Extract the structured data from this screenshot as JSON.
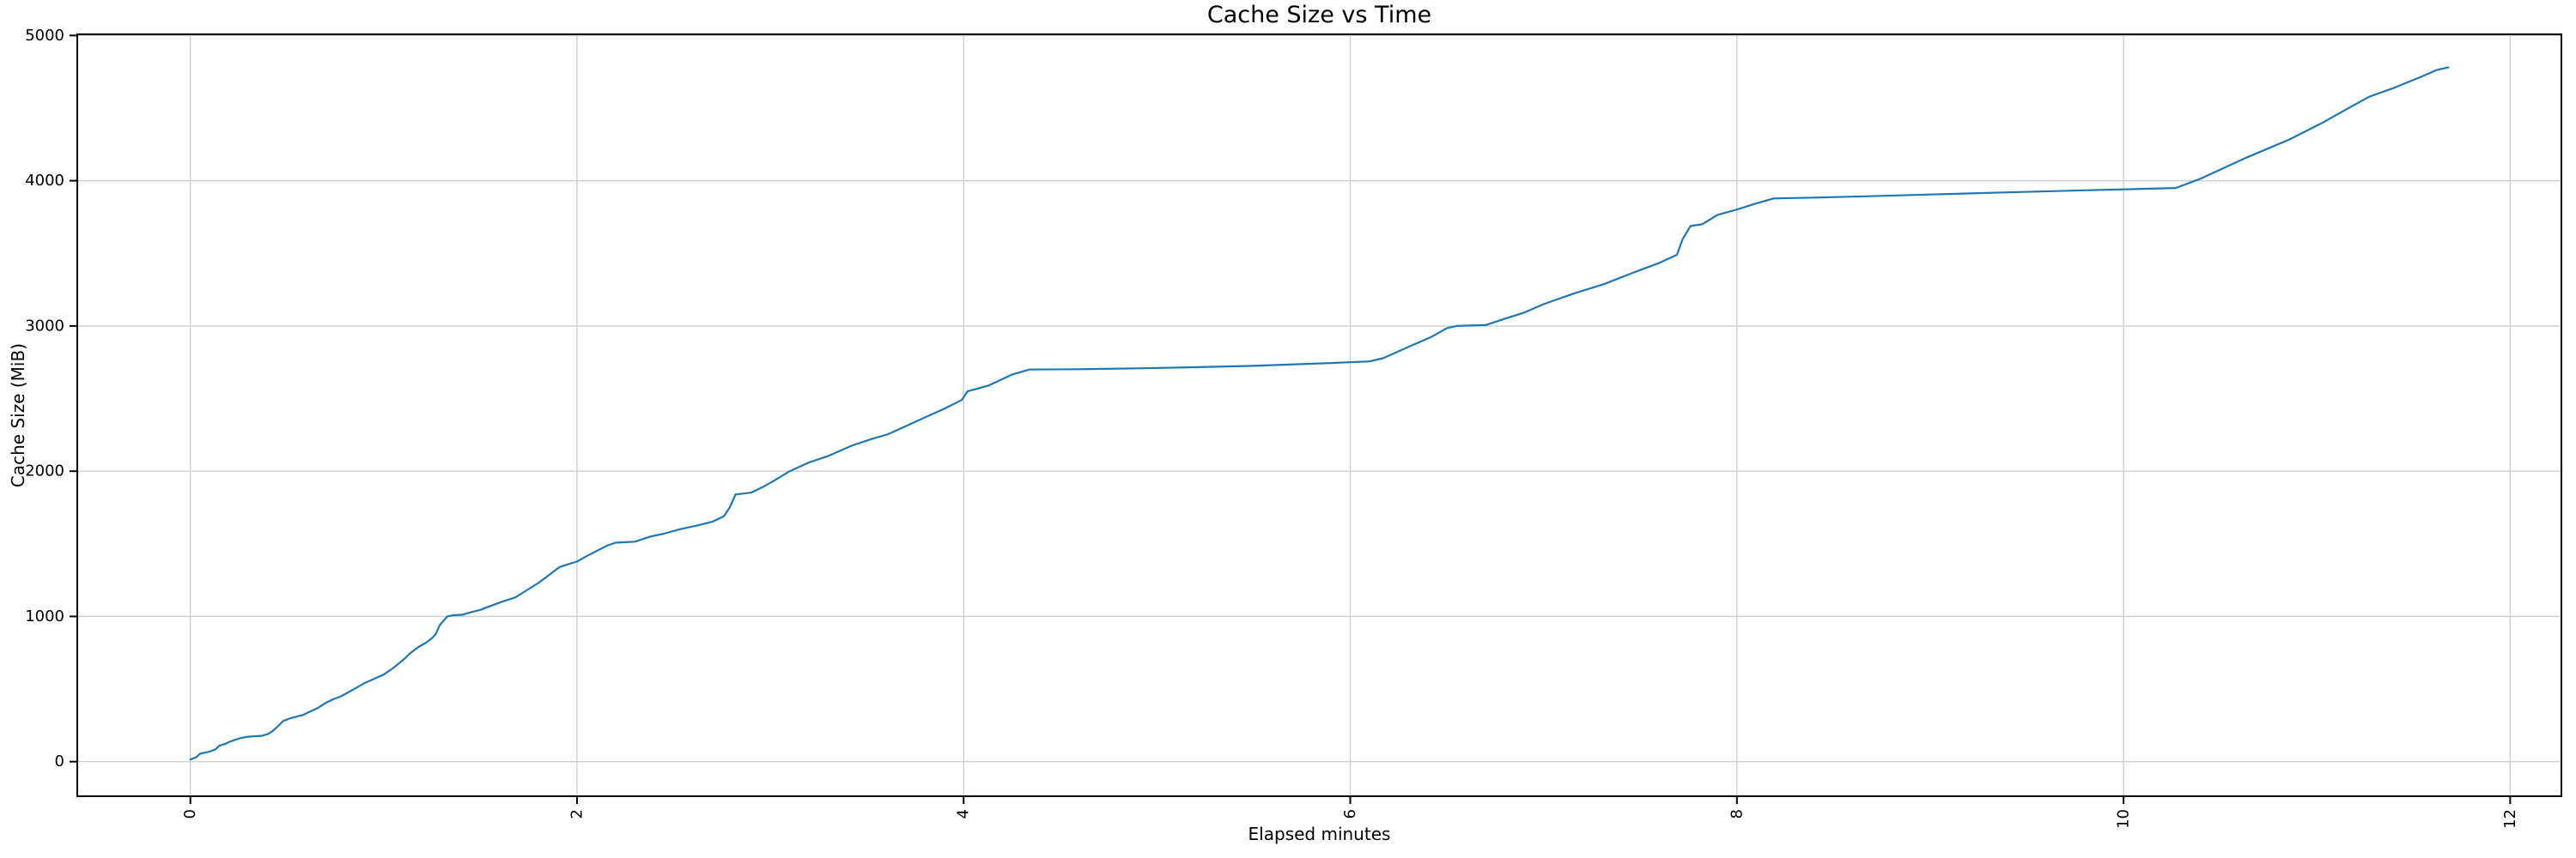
{
  "chart_data": {
    "type": "line",
    "title": "Cache Size vs Time",
    "xlabel": "Elapsed minutes",
    "ylabel": "Cache Size (MiB)",
    "x_ticks": [
      0,
      2,
      4,
      6,
      8,
      10,
      12
    ],
    "y_ticks": [
      0,
      1000,
      2000,
      3000,
      4000,
      5000
    ],
    "x_tick_rotation": -90,
    "xlim": [
      -0.585,
      12.265
    ],
    "ylim": [
      -238,
      5008
    ],
    "grid": true,
    "legend": "none",
    "colors": {
      "line": "#1f77b4",
      "grid": "#cfcfcf",
      "spine": "#000000",
      "background": "#ffffff"
    },
    "series": [
      {
        "name": "cache-size",
        "points": [
          [
            0.0,
            15
          ],
          [
            0.03,
            30
          ],
          [
            0.05,
            55
          ],
          [
            0.08,
            64
          ],
          [
            0.1,
            70
          ],
          [
            0.13,
            85
          ],
          [
            0.15,
            110
          ],
          [
            0.18,
            122
          ],
          [
            0.2,
            135
          ],
          [
            0.23,
            150
          ],
          [
            0.26,
            162
          ],
          [
            0.29,
            170
          ],
          [
            0.33,
            175
          ],
          [
            0.37,
            178
          ],
          [
            0.4,
            190
          ],
          [
            0.42,
            205
          ],
          [
            0.45,
            240
          ],
          [
            0.48,
            280
          ],
          [
            0.52,
            300
          ],
          [
            0.55,
            310
          ],
          [
            0.58,
            320
          ],
          [
            0.62,
            345
          ],
          [
            0.66,
            370
          ],
          [
            0.7,
            405
          ],
          [
            0.74,
            430
          ],
          [
            0.78,
            450
          ],
          [
            0.82,
            480
          ],
          [
            0.86,
            510
          ],
          [
            0.9,
            540
          ],
          [
            0.95,
            570
          ],
          [
            1.0,
            600
          ],
          [
            1.05,
            645
          ],
          [
            1.1,
            700
          ],
          [
            1.14,
            750
          ],
          [
            1.18,
            790
          ],
          [
            1.22,
            820
          ],
          [
            1.25,
            850
          ],
          [
            1.27,
            880
          ],
          [
            1.29,
            940
          ],
          [
            1.31,
            970
          ],
          [
            1.33,
            1000
          ],
          [
            1.36,
            1008
          ],
          [
            1.41,
            1012
          ],
          [
            1.44,
            1025
          ],
          [
            1.5,
            1045
          ],
          [
            1.56,
            1075
          ],
          [
            1.62,
            1105
          ],
          [
            1.68,
            1130
          ],
          [
            1.74,
            1180
          ],
          [
            1.8,
            1230
          ],
          [
            1.86,
            1290
          ],
          [
            1.91,
            1340
          ],
          [
            1.96,
            1362
          ],
          [
            2.0,
            1378
          ],
          [
            2.05,
            1415
          ],
          [
            2.1,
            1450
          ],
          [
            2.16,
            1490
          ],
          [
            2.2,
            1508
          ],
          [
            2.3,
            1515
          ],
          [
            2.38,
            1550
          ],
          [
            2.45,
            1570
          ],
          [
            2.53,
            1600
          ],
          [
            2.62,
            1625
          ],
          [
            2.7,
            1652
          ],
          [
            2.76,
            1690
          ],
          [
            2.79,
            1750
          ],
          [
            2.82,
            1840
          ],
          [
            2.9,
            1852
          ],
          [
            2.96,
            1890
          ],
          [
            3.02,
            1935
          ],
          [
            3.1,
            2000
          ],
          [
            3.2,
            2060
          ],
          [
            3.3,
            2105
          ],
          [
            3.42,
            2175
          ],
          [
            3.52,
            2220
          ],
          [
            3.61,
            2255
          ],
          [
            3.7,
            2310
          ],
          [
            3.8,
            2370
          ],
          [
            3.9,
            2430
          ],
          [
            3.99,
            2490
          ],
          [
            4.02,
            2550
          ],
          [
            4.13,
            2590
          ],
          [
            4.25,
            2665
          ],
          [
            4.34,
            2700
          ],
          [
            4.6,
            2702
          ],
          [
            4.9,
            2708
          ],
          [
            5.2,
            2716
          ],
          [
            5.5,
            2725
          ],
          [
            5.9,
            2745
          ],
          [
            6.1,
            2756
          ],
          [
            6.17,
            2778
          ],
          [
            6.3,
            2855
          ],
          [
            6.42,
            2925
          ],
          [
            6.5,
            2985
          ],
          [
            6.55,
            3000
          ],
          [
            6.7,
            3006
          ],
          [
            6.8,
            3050
          ],
          [
            6.9,
            3092
          ],
          [
            7.0,
            3150
          ],
          [
            7.16,
            3225
          ],
          [
            7.31,
            3287
          ],
          [
            7.46,
            3365
          ],
          [
            7.6,
            3435
          ],
          [
            7.69,
            3490
          ],
          [
            7.72,
            3600
          ],
          [
            7.76,
            3688
          ],
          [
            7.82,
            3700
          ],
          [
            7.9,
            3765
          ],
          [
            8.01,
            3805
          ],
          [
            8.09,
            3840
          ],
          [
            8.19,
            3878
          ],
          [
            8.4,
            3884
          ],
          [
            8.6,
            3890
          ],
          [
            9.0,
            3905
          ],
          [
            9.4,
            3920
          ],
          [
            9.8,
            3934
          ],
          [
            10.1,
            3944
          ],
          [
            10.27,
            3950
          ],
          [
            10.4,
            4015
          ],
          [
            10.62,
            4150
          ],
          [
            10.86,
            4285
          ],
          [
            11.03,
            4400
          ],
          [
            11.15,
            4490
          ],
          [
            11.27,
            4578
          ],
          [
            11.4,
            4640
          ],
          [
            11.53,
            4710
          ],
          [
            11.62,
            4762
          ],
          [
            11.68,
            4780
          ]
        ]
      }
    ]
  }
}
